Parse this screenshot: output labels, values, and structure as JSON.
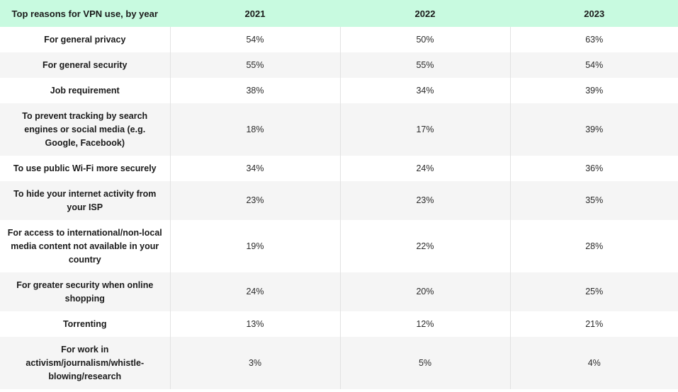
{
  "chart_data": {
    "type": "table",
    "columns": [
      "Top reasons for VPN use, by year",
      "2021",
      "2022",
      "2023"
    ],
    "rows": [
      {
        "label": "For general privacy",
        "values": [
          "54%",
          "50%",
          "63%"
        ]
      },
      {
        "label": "For general security",
        "values": [
          "55%",
          "55%",
          "54%"
        ]
      },
      {
        "label": "Job requirement",
        "values": [
          "38%",
          "34%",
          "39%"
        ]
      },
      {
        "label": "To prevent tracking by search engines or social media (e.g. Google, Facebook)",
        "values": [
          "18%",
          "17%",
          "39%"
        ]
      },
      {
        "label": "To use public Wi-Fi more securely",
        "values": [
          "34%",
          "24%",
          "36%"
        ]
      },
      {
        "label": "To hide your internet activity from your ISP",
        "values": [
          "23%",
          "23%",
          "35%"
        ]
      },
      {
        "label": "For access to international/non-local media content not available in your country",
        "values": [
          "19%",
          "22%",
          "28%"
        ]
      },
      {
        "label": "For greater security when online shopping",
        "values": [
          "24%",
          "20%",
          "25%"
        ]
      },
      {
        "label": "Torrenting",
        "values": [
          "13%",
          "12%",
          "21%"
        ]
      },
      {
        "label": "For work in activism/journalism/whistle-blowing/research",
        "values": [
          "3%",
          "5%",
          "4%"
        ]
      }
    ],
    "colors": {
      "header_bg": "#c8fae0",
      "alt_row_bg": "#f5f5f5"
    }
  }
}
